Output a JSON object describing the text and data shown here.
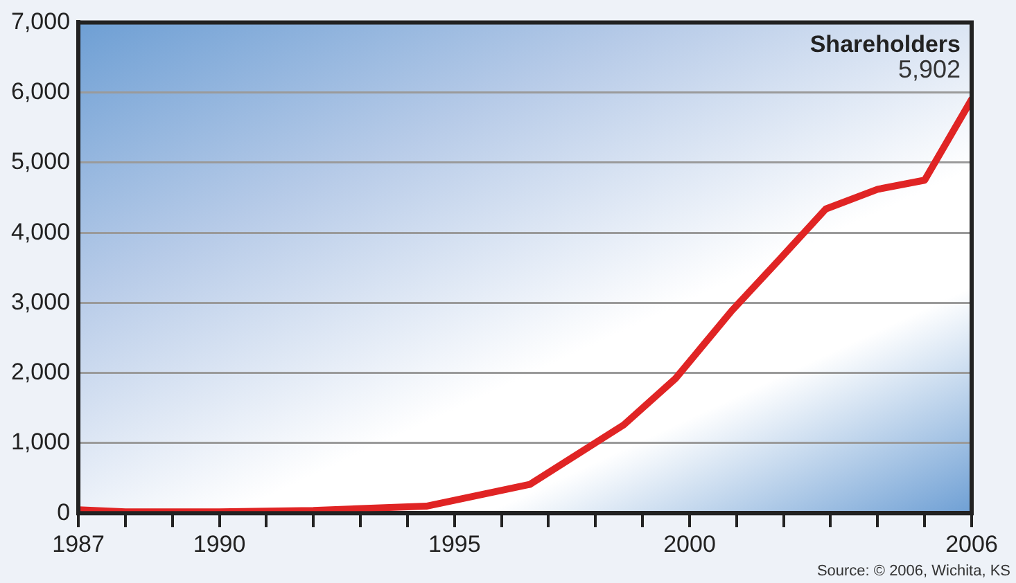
{
  "chart_data": {
    "type": "line",
    "title": "Shareholders",
    "x": [
      1987,
      1988,
      1990,
      1992,
      1994.4,
      1996.6,
      1998.6,
      1999.7,
      2000.9,
      2001.9,
      2002.9,
      2004,
      2005,
      2006
    ],
    "series": [
      {
        "color": "#e02424",
        "values": [
          50,
          20,
          20,
          40,
          100,
          410,
          1260,
          1920,
          2890,
          3610,
          4340,
          4620,
          4750,
          5902
        ]
      }
    ],
    "xlim": [
      1987,
      2006
    ],
    "xticks": [
      1987,
      {
        "value": 1988,
        "label": null
      },
      {
        "value": 1989,
        "label": null
      },
      1990,
      {
        "value": 1991,
        "label": null
      },
      {
        "value": 1992,
        "label": null
      },
      {
        "value": 1993,
        "label": null
      },
      {
        "value": 1994,
        "label": null
      },
      1995,
      {
        "value": 1996,
        "label": null
      },
      {
        "value": 1997,
        "label": null
      },
      {
        "value": 1998,
        "label": null
      },
      {
        "value": 1999,
        "label": null
      },
      2000,
      {
        "value": 2001,
        "label": null
      },
      {
        "value": 2002,
        "label": null
      },
      {
        "value": 2003,
        "label": null
      },
      {
        "value": 2004,
        "label": null
      },
      {
        "value": 2005,
        "label": null
      },
      2006
    ],
    "ylim": [
      0,
      7000
    ],
    "yticks": [
      0,
      {
        "value": 1000,
        "label": "1,000"
      },
      {
        "value": 2000,
        "label": "2,000"
      },
      {
        "value": 3000,
        "label": "3,000"
      },
      {
        "value": 4000,
        "label": "4,000"
      },
      {
        "value": 5000,
        "label": "5,000"
      },
      {
        "value": 6000,
        "label": "6,000"
      },
      {
        "value": 7000,
        "label": "7,000"
      }
    ],
    "grid": "y",
    "legend": false,
    "marker": "none",
    "line_style": "solid",
    "annotations": [
      {
        "text": "5,902",
        "x": 2006,
        "y": 5902
      },
      "Source: © 2006, Wichita, KS"
    ]
  }
}
